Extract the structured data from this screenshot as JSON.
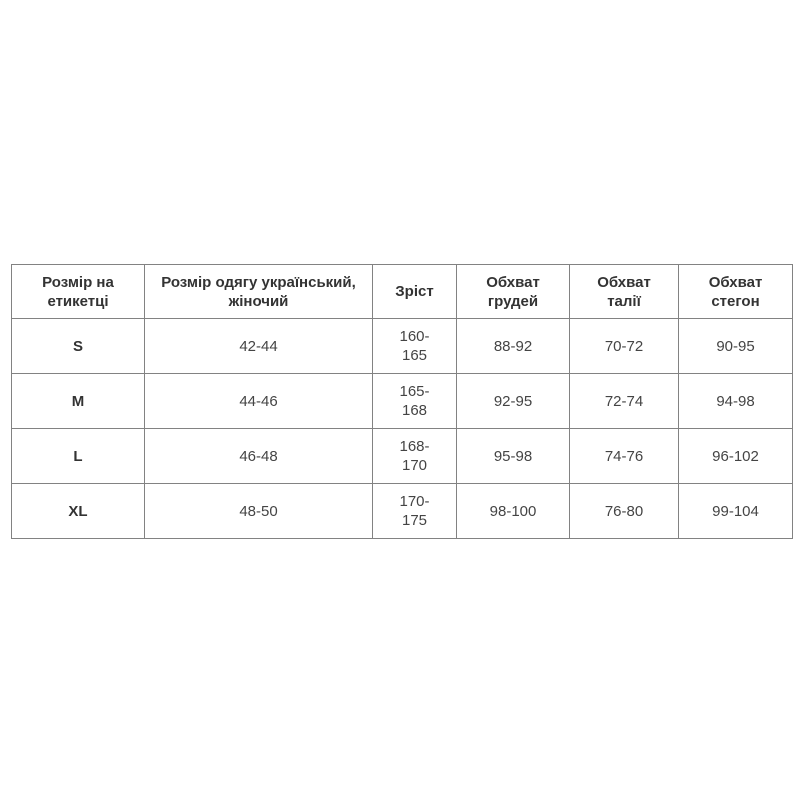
{
  "page": {
    "background_color": "#ffffff",
    "text_color_header": "#333333",
    "text_color_cell": "#444444",
    "border_color": "#828282"
  },
  "table": {
    "columns": [
      {
        "header": "Розмір на\nетикетці"
      },
      {
        "header": "Розмір одягу український,\nжіночий"
      },
      {
        "header": "Зріст"
      },
      {
        "header": "Обхват\nгрудей"
      },
      {
        "header": "Обхват\nталії"
      },
      {
        "header": "Обхват\nстегон"
      }
    ],
    "rows": [
      {
        "size": "S",
        "ua_size": "42-44",
        "height": "160-\n165",
        "chest": "88-92",
        "waist": "70-72",
        "hips": "90-95"
      },
      {
        "size": "M",
        "ua_size": "44-46",
        "height": "165-\n168",
        "chest": "92-95",
        "waist": "72-74",
        "hips": "94-98"
      },
      {
        "size": "L",
        "ua_size": "46-48",
        "height": "168-\n170",
        "chest": "95-98",
        "waist": "74-76",
        "hips": "96-102"
      },
      {
        "size": "XL",
        "ua_size": "48-50",
        "height": "170-\n175",
        "chest": "98-100",
        "waist": "76-80",
        "hips": "99-104"
      }
    ]
  }
}
